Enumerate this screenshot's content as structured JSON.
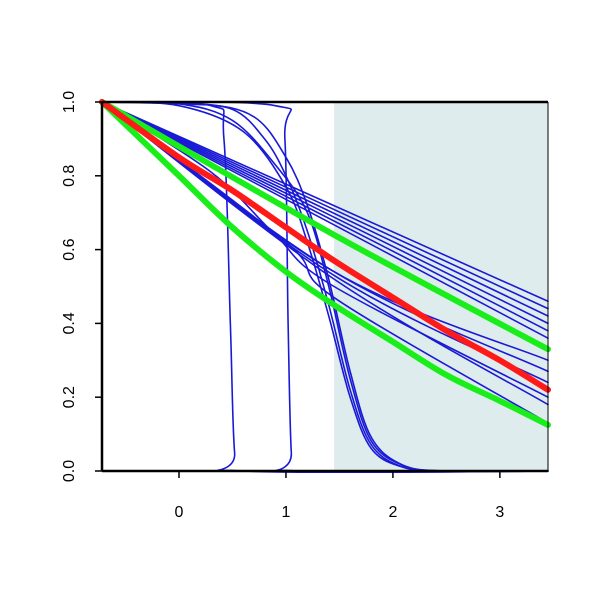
{
  "chart_data": {
    "type": "line",
    "title": "",
    "xlabel": "",
    "ylabel": "",
    "xlim": [
      -0.72,
      3.45
    ],
    "ylim": [
      0,
      1
    ],
    "x_ticks": [
      {
        "value": 0,
        "label": "0"
      },
      {
        "value": 1,
        "label": "1"
      },
      {
        "value": 2,
        "label": "2"
      },
      {
        "value": 3,
        "label": "3"
      }
    ],
    "y_ticks": [
      {
        "value": 0.0,
        "label": "0.0"
      },
      {
        "value": 0.2,
        "label": "0.2"
      },
      {
        "value": 0.4,
        "label": "0.4"
      },
      {
        "value": 0.6,
        "label": "0.6"
      },
      {
        "value": 0.8,
        "label": "0.8"
      },
      {
        "value": 1.0,
        "label": "1.0"
      }
    ],
    "grid": false,
    "legend": "none",
    "shaded_region": {
      "x_from": 1.45,
      "x_to": 3.45,
      "color": "#dfeced"
    },
    "colors": {
      "blue": "#1a1ad6",
      "red": "#ff1a1a",
      "green": "#1aee1a",
      "axis": "#000000"
    },
    "series": [
      {
        "color": "blue",
        "width": 1.6,
        "points": [
          [
            -0.72,
            1.0
          ],
          [
            0.3,
            0.99
          ],
          [
            0.42,
            0.9
          ],
          [
            0.48,
            0.4
          ],
          [
            0.52,
            0.05
          ],
          [
            0.6,
            0.0
          ],
          [
            3.45,
            0.0
          ]
        ]
      },
      {
        "color": "blue",
        "width": 1.6,
        "points": [
          [
            -0.72,
            1.0
          ],
          [
            0.9,
            0.99
          ],
          [
            0.99,
            0.9
          ],
          [
            1.02,
            0.4
          ],
          [
            1.05,
            0.05
          ],
          [
            1.1,
            0.0
          ],
          [
            3.45,
            0.0
          ]
        ]
      },
      {
        "color": "blue",
        "width": 1.6,
        "points": [
          [
            -0.72,
            1.0
          ],
          [
            0.0,
            0.995
          ],
          [
            0.5,
            0.95
          ],
          [
            0.9,
            0.83
          ],
          [
            1.2,
            0.7
          ],
          [
            1.4,
            0.5
          ],
          [
            1.6,
            0.25
          ],
          [
            1.8,
            0.08
          ],
          [
            2.1,
            0.015
          ],
          [
            2.5,
            0.0
          ],
          [
            3.45,
            0.0
          ]
        ]
      },
      {
        "color": "blue",
        "width": 1.6,
        "points": [
          [
            -0.72,
            1.0
          ],
          [
            0.0,
            0.99
          ],
          [
            0.6,
            0.92
          ],
          [
            1.0,
            0.77
          ],
          [
            1.2,
            0.62
          ],
          [
            1.4,
            0.42
          ],
          [
            1.6,
            0.2
          ],
          [
            1.8,
            0.06
          ],
          [
            2.1,
            0.01
          ],
          [
            2.5,
            0.0
          ],
          [
            3.45,
            0.0
          ]
        ]
      },
      {
        "color": "blue",
        "width": 1.6,
        "points": [
          [
            -0.72,
            1.0
          ],
          [
            0.0,
            0.995
          ],
          [
            0.5,
            0.98
          ],
          [
            0.8,
            0.9
          ],
          [
            1.0,
            0.8
          ],
          [
            1.2,
            0.65
          ],
          [
            1.4,
            0.45
          ],
          [
            1.6,
            0.22
          ],
          [
            1.8,
            0.07
          ],
          [
            2.1,
            0.01
          ],
          [
            2.5,
            0.0
          ],
          [
            3.45,
            0.0
          ]
        ]
      },
      {
        "color": "blue",
        "width": 1.6,
        "points": [
          [
            -0.72,
            1.0
          ],
          [
            0.2,
            0.995
          ],
          [
            0.7,
            0.96
          ],
          [
            1.0,
            0.85
          ],
          [
            1.2,
            0.72
          ],
          [
            1.4,
            0.52
          ],
          [
            1.6,
            0.27
          ],
          [
            1.8,
            0.09
          ],
          [
            2.1,
            0.015
          ],
          [
            2.5,
            0.0
          ],
          [
            3.45,
            0.0
          ]
        ]
      },
      {
        "color": "blue",
        "width": 1.6,
        "points": [
          [
            -0.72,
            1.0
          ],
          [
            3.45,
            0.46
          ]
        ]
      },
      {
        "color": "blue",
        "width": 1.6,
        "points": [
          [
            -0.72,
            1.0
          ],
          [
            3.45,
            0.44
          ]
        ]
      },
      {
        "color": "blue",
        "width": 1.6,
        "points": [
          [
            -0.72,
            1.0
          ],
          [
            3.45,
            0.42
          ]
        ]
      },
      {
        "color": "blue",
        "width": 1.6,
        "points": [
          [
            -0.72,
            1.0
          ],
          [
            3.45,
            0.4
          ]
        ]
      },
      {
        "color": "blue",
        "width": 1.6,
        "points": [
          [
            -0.72,
            1.0
          ],
          [
            3.45,
            0.38
          ]
        ]
      },
      {
        "color": "blue",
        "width": 1.6,
        "points": [
          [
            -0.72,
            1.0
          ],
          [
            3.45,
            0.36
          ]
        ]
      },
      {
        "color": "blue",
        "width": 1.6,
        "points": [
          [
            -0.72,
            1.0
          ],
          [
            1.45,
            0.54
          ],
          [
            3.45,
            0.3
          ]
        ]
      },
      {
        "color": "blue",
        "width": 1.6,
        "points": [
          [
            -0.72,
            1.0
          ],
          [
            1.45,
            0.54
          ],
          [
            3.45,
            0.27
          ]
        ]
      },
      {
        "color": "blue",
        "width": 1.6,
        "points": [
          [
            -0.72,
            1.0
          ],
          [
            1.45,
            0.53
          ],
          [
            3.45,
            0.24
          ]
        ]
      },
      {
        "color": "blue",
        "width": 1.6,
        "points": [
          [
            -0.72,
            1.0
          ],
          [
            1.45,
            0.52
          ],
          [
            3.45,
            0.18
          ]
        ]
      },
      {
        "color": "blue",
        "width": 1.6,
        "points": [
          [
            -0.72,
            1.0
          ],
          [
            1.0,
            0.62
          ],
          [
            1.45,
            0.47
          ],
          [
            3.45,
            0.13
          ]
        ]
      },
      {
        "color": "blue",
        "width": 1.6,
        "points": [
          [
            -0.72,
            1.0
          ],
          [
            0.3,
            0.81
          ],
          [
            0.9,
            0.64
          ],
          [
            1.45,
            0.5
          ],
          [
            3.45,
            0.2
          ]
        ]
      },
      {
        "color": "green",
        "width": 6,
        "points": [
          [
            -0.72,
            1.0
          ],
          [
            1.45,
            0.64
          ],
          [
            3.45,
            0.33
          ]
        ]
      },
      {
        "color": "green",
        "width": 6,
        "points": [
          [
            -0.72,
            1.0
          ],
          [
            0.0,
            0.8
          ],
          [
            0.5,
            0.66
          ],
          [
            1.0,
            0.54
          ],
          [
            1.45,
            0.45
          ],
          [
            2.0,
            0.35
          ],
          [
            2.5,
            0.26
          ],
          [
            3.0,
            0.19
          ],
          [
            3.45,
            0.125
          ]
        ]
      },
      {
        "color": "red",
        "width": 6,
        "points": [
          [
            -0.72,
            1.0
          ],
          [
            0.0,
            0.85
          ],
          [
            0.5,
            0.76
          ],
          [
            1.0,
            0.66
          ],
          [
            1.45,
            0.57
          ],
          [
            2.0,
            0.47
          ],
          [
            2.5,
            0.38
          ],
          [
            3.0,
            0.3
          ],
          [
            3.45,
            0.22
          ]
        ]
      }
    ]
  }
}
